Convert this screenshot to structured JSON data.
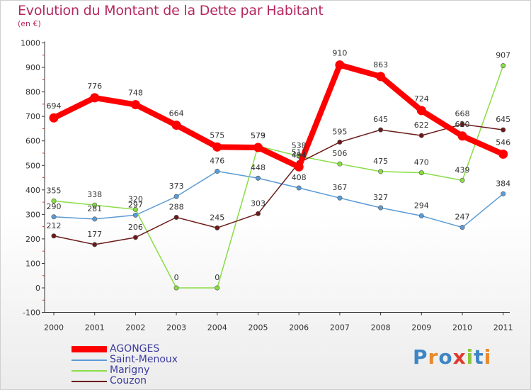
{
  "title": "Evolution du Montant de la Dette par Habitant",
  "subtitle": "(en €)",
  "brand": "Proxiti",
  "chart_data": {
    "type": "line",
    "title": "Evolution du Montant de la Dette par Habitant",
    "subtitle": "(en €)",
    "x": [
      "2000",
      "2001",
      "2002",
      "2003",
      "2004",
      "2005",
      "2006",
      "2007",
      "2008",
      "2009",
      "2010",
      "2011"
    ],
    "ylim": [
      -100,
      1000
    ],
    "yticks": [
      -100,
      0,
      100,
      200,
      300,
      400,
      500,
      600,
      700,
      800,
      900,
      1000
    ],
    "grid": false,
    "legend_position": "bottom-left",
    "series": [
      {
        "name": "AGONGES",
        "color": "#ff0000",
        "values": [
          694,
          776,
          748,
          664,
          575,
          573,
          494,
          910,
          863,
          724,
          620,
          546
        ]
      },
      {
        "name": "Saint-Menoux",
        "color": "#5b9bd5",
        "values": [
          290,
          281,
          297,
          373,
          476,
          448,
          408,
          367,
          327,
          294,
          247,
          384
        ]
      },
      {
        "name": "Marigny",
        "color": "#88dd44",
        "values": [
          355,
          338,
          320,
          0,
          0,
          579,
          538,
          506,
          475,
          470,
          439,
          907
        ]
      },
      {
        "name": "Couzon",
        "color": "#6b1a1a",
        "values": [
          212,
          177,
          206,
          288,
          245,
          303,
          511,
          595,
          645,
          622,
          668,
          645
        ]
      }
    ]
  }
}
